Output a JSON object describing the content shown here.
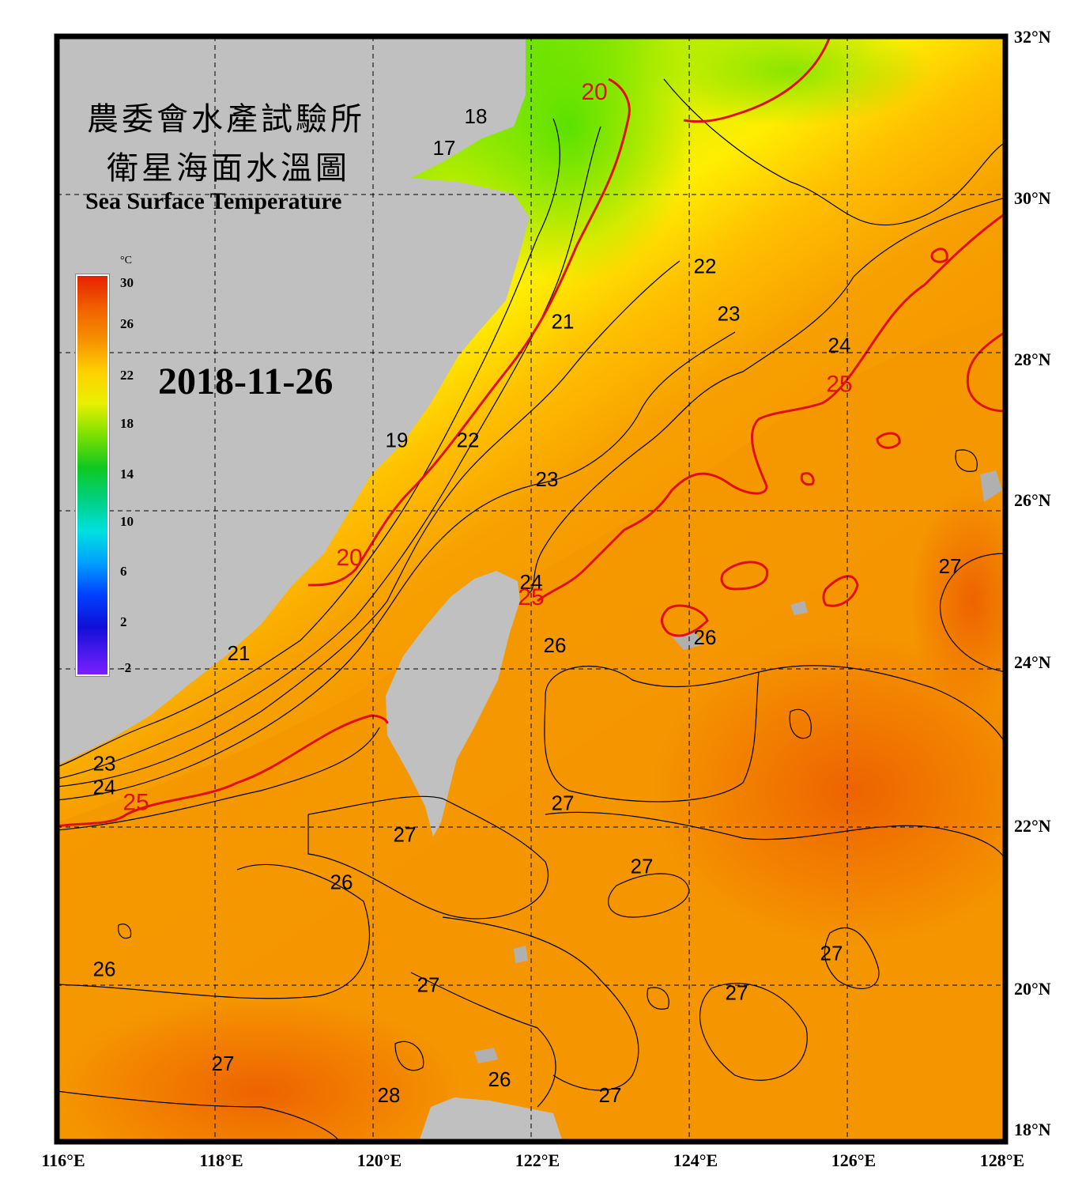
{
  "title": {
    "line1": "農委會水產試驗所",
    "line2": "衛星海面水溫圖",
    "english": "Sea Surface Temperature"
  },
  "date": "2018-11-26",
  "colorbar": {
    "unit": "°C",
    "ticks": [
      "30",
      "26",
      "22",
      "18",
      "14",
      "10",
      "6",
      "2",
      "-2"
    ],
    "min": -2,
    "max": 30
  },
  "axes": {
    "longitude_labels": [
      "116°E",
      "118°E",
      "120°E",
      "122°E",
      "124°E",
      "126°E",
      "128°E"
    ],
    "latitude_labels": [
      "32°N",
      "30°N",
      "28°N",
      "26°N",
      "24°N",
      "22°N",
      "20°N",
      "18°N"
    ],
    "lon_range": [
      116,
      128
    ],
    "lat_range": [
      18,
      32
    ],
    "grid": "dashed"
  },
  "contour_labels": [
    {
      "text": "20",
      "lon": 122.8,
      "lat": 31.2,
      "color": "red"
    },
    {
      "text": "18",
      "lon": 121.3,
      "lat": 30.9,
      "color": "black"
    },
    {
      "text": "17",
      "lon": 120.9,
      "lat": 30.5,
      "color": "black"
    },
    {
      "text": "22",
      "lon": 124.2,
      "lat": 29.0,
      "color": "black"
    },
    {
      "text": "23",
      "lon": 124.5,
      "lat": 28.4,
      "color": "black"
    },
    {
      "text": "24",
      "lon": 125.9,
      "lat": 28.0,
      "color": "black"
    },
    {
      "text": "21",
      "lon": 122.4,
      "lat": 28.3,
      "color": "black"
    },
    {
      "text": "25",
      "lon": 125.9,
      "lat": 27.5,
      "color": "red"
    },
    {
      "text": "19",
      "lon": 120.3,
      "lat": 26.8,
      "color": "black"
    },
    {
      "text": "22",
      "lon": 121.2,
      "lat": 26.8,
      "color": "black"
    },
    {
      "text": "23",
      "lon": 122.2,
      "lat": 26.3,
      "color": "black"
    },
    {
      "text": "20",
      "lon": 119.7,
      "lat": 25.3,
      "color": "red"
    },
    {
      "text": "24",
      "lon": 122.0,
      "lat": 25.0,
      "color": "black"
    },
    {
      "text": "25",
      "lon": 122.0,
      "lat": 24.8,
      "color": "red"
    },
    {
      "text": "26",
      "lon": 122.3,
      "lat": 24.2,
      "color": "black"
    },
    {
      "text": "26",
      "lon": 124.2,
      "lat": 24.3,
      "color": "black"
    },
    {
      "text": "27",
      "lon": 127.3,
      "lat": 25.2,
      "color": "black"
    },
    {
      "text": "21",
      "lon": 118.3,
      "lat": 24.1,
      "color": "black"
    },
    {
      "text": "23",
      "lon": 116.6,
      "lat": 22.7,
      "color": "black"
    },
    {
      "text": "24",
      "lon": 116.6,
      "lat": 22.4,
      "color": "black"
    },
    {
      "text": "25",
      "lon": 117.0,
      "lat": 22.2,
      "color": "red"
    },
    {
      "text": "27",
      "lon": 122.4,
      "lat": 22.2,
      "color": "black"
    },
    {
      "text": "27",
      "lon": 120.4,
      "lat": 21.8,
      "color": "black"
    },
    {
      "text": "27",
      "lon": 123.4,
      "lat": 21.4,
      "color": "black"
    },
    {
      "text": "26",
      "lon": 119.6,
      "lat": 21.2,
      "color": "black"
    },
    {
      "text": "27",
      "lon": 125.8,
      "lat": 20.3,
      "color": "black"
    },
    {
      "text": "26",
      "lon": 116.6,
      "lat": 20.1,
      "color": "black"
    },
    {
      "text": "27",
      "lon": 120.7,
      "lat": 19.9,
      "color": "black"
    },
    {
      "text": "27",
      "lon": 124.6,
      "lat": 19.8,
      "color": "black"
    },
    {
      "text": "27",
      "lon": 118.1,
      "lat": 18.9,
      "color": "black"
    },
    {
      "text": "26",
      "lon": 121.6,
      "lat": 18.7,
      "color": "black"
    },
    {
      "text": "28",
      "lon": 120.2,
      "lat": 18.5,
      "color": "black"
    },
    {
      "text": "27",
      "lon": 123.0,
      "lat": 18.5,
      "color": "black"
    }
  ],
  "colors": {
    "land": "#c0c0c0",
    "frame": "#000000",
    "warm_water": "#f7a000",
    "red_contour": "#e01010"
  }
}
